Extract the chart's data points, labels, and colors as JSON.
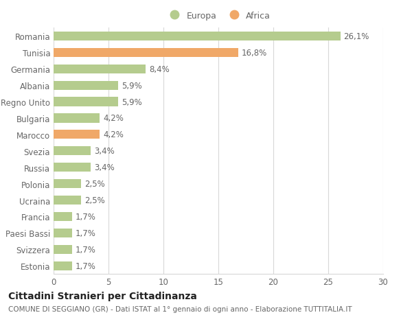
{
  "categories": [
    "Romania",
    "Tunisia",
    "Germania",
    "Albania",
    "Regno Unito",
    "Bulgaria",
    "Marocco",
    "Svezia",
    "Russia",
    "Polonia",
    "Ucraina",
    "Francia",
    "Paesi Bassi",
    "Svizzera",
    "Estonia"
  ],
  "values": [
    26.1,
    16.8,
    8.4,
    5.9,
    5.9,
    4.2,
    4.2,
    3.4,
    3.4,
    2.5,
    2.5,
    1.7,
    1.7,
    1.7,
    1.7
  ],
  "labels": [
    "26,1%",
    "16,8%",
    "8,4%",
    "5,9%",
    "5,9%",
    "4,2%",
    "4,2%",
    "3,4%",
    "3,4%",
    "2,5%",
    "2,5%",
    "1,7%",
    "1,7%",
    "1,7%",
    "1,7%"
  ],
  "continent": [
    "Europa",
    "Africa",
    "Europa",
    "Europa",
    "Europa",
    "Europa",
    "Africa",
    "Europa",
    "Europa",
    "Europa",
    "Europa",
    "Europa",
    "Europa",
    "Europa",
    "Europa"
  ],
  "color_europa": "#b5cc8e",
  "color_africa": "#f0a868",
  "background_color": "#ffffff",
  "grid_color": "#d8d8d8",
  "title": "Cittadini Stranieri per Cittadinanza",
  "subtitle": "COMUNE DI SEGGIANO (GR) - Dati ISTAT al 1° gennaio di ogni anno - Elaborazione TUTTITALIA.IT",
  "xlim": [
    0,
    30
  ],
  "xticks": [
    0,
    5,
    10,
    15,
    20,
    25,
    30
  ],
  "legend_europa": "Europa",
  "legend_africa": "Africa",
  "bar_height": 0.55,
  "label_fontsize": 8.5,
  "tick_fontsize": 8.5,
  "title_fontsize": 10,
  "subtitle_fontsize": 7.5
}
